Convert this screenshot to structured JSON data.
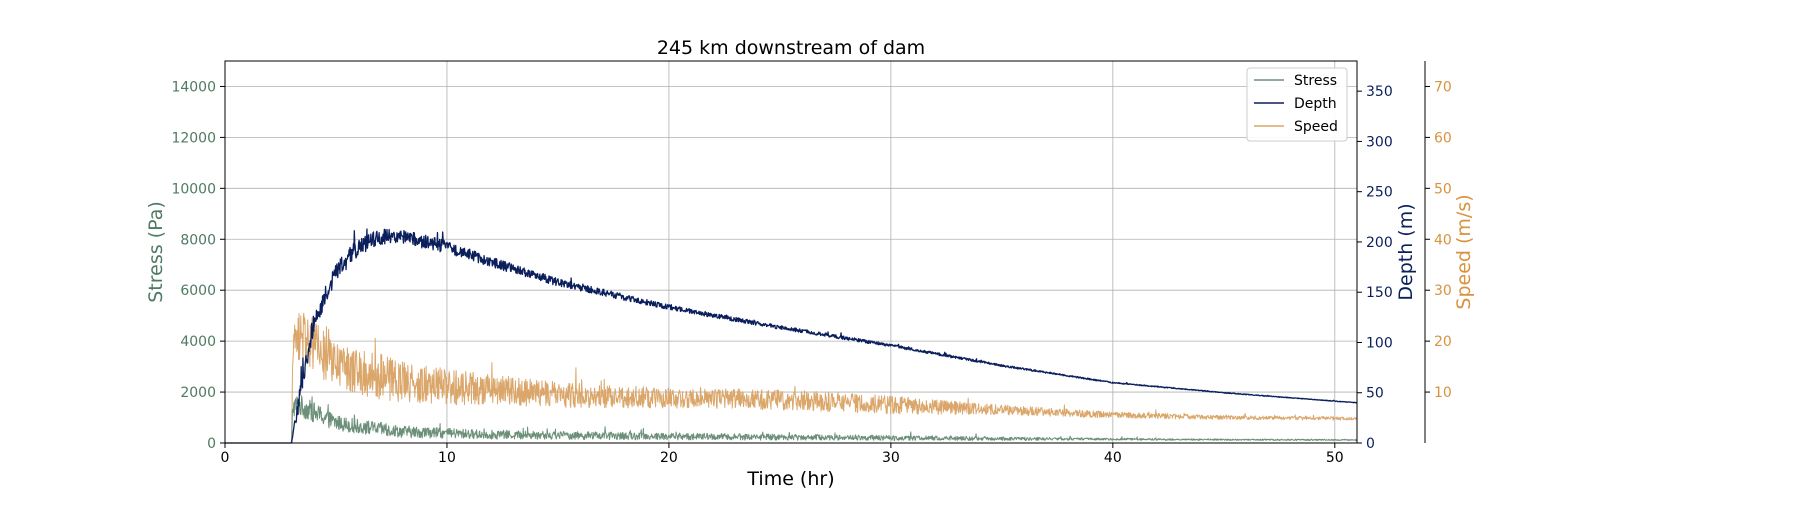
{
  "chart_data": {
    "type": "line",
    "title": "245 km downstream of dam",
    "xlabel": "Time (hr)",
    "xlim": [
      0,
      51
    ],
    "x_ticks": [
      0,
      10,
      20,
      30,
      40,
      50
    ],
    "grid": true,
    "legend_position": "top-right",
    "axes": {
      "stress": {
        "label": "Stress (Pa)",
        "side": "left",
        "color": "#4f7a63",
        "ylim": [
          0,
          15000
        ],
        "ticks": [
          0,
          2000,
          4000,
          6000,
          8000,
          10000,
          12000,
          14000
        ]
      },
      "depth": {
        "label": "Depth (m)",
        "side": "right",
        "color": "#0b1f5c",
        "ylim": [
          0,
          380
        ],
        "ticks": [
          0,
          50,
          100,
          150,
          200,
          250,
          300,
          350
        ]
      },
      "speed": {
        "label": "Speed (m/s)",
        "side": "right-outer",
        "color": "#d9923f",
        "ylim": [
          0,
          75
        ],
        "ticks": [
          10,
          20,
          30,
          40,
          50,
          60,
          70
        ]
      }
    },
    "series": [
      {
        "name": "Stress",
        "axis": "stress",
        "color": "#6b8f78",
        "x": [
          0,
          3.0,
          3.05,
          3.3,
          4,
          5,
          6,
          7,
          8,
          10,
          12,
          15,
          20,
          25,
          30,
          35,
          40,
          45,
          51
        ],
        "values": [
          0,
          0,
          1400,
          1500,
          1200,
          800,
          650,
          550,
          450,
          380,
          330,
          300,
          260,
          230,
          200,
          170,
          150,
          130,
          120
        ],
        "noise": [
          0,
          0,
          400,
          450,
          400,
          300,
          280,
          260,
          240,
          200,
          180,
          160,
          140,
          120,
          100,
          70,
          40,
          30,
          25
        ]
      },
      {
        "name": "Depth",
        "axis": "depth",
        "color": "#0b1f5c",
        "x": [
          0,
          3.0,
          3.3,
          4,
          5,
          6,
          7,
          8,
          9,
          10,
          12,
          15,
          20,
          25,
          30,
          35,
          40,
          45,
          51
        ],
        "values": [
          0,
          0,
          40,
          120,
          170,
          195,
          205,
          205,
          200,
          195,
          180,
          160,
          135,
          115,
          97,
          77,
          60,
          50,
          40
        ],
        "noise": [
          0,
          0,
          10,
          10,
          9,
          9,
          8,
          7,
          7,
          6,
          5,
          4,
          2.5,
          2,
          1.5,
          1,
          0.6,
          0.4,
          0.3
        ]
      },
      {
        "name": "Speed",
        "axis": "speed",
        "color": "#dba66a",
        "x": [
          0,
          3.0,
          3.05,
          3.5,
          4,
          5,
          6,
          7,
          8,
          10,
          12,
          15,
          20,
          25,
          30,
          35,
          40,
          45,
          51
        ],
        "values": [
          0,
          0,
          19,
          22,
          19,
          15,
          14,
          13,
          12,
          11,
          10.5,
          9.5,
          8.8,
          8.5,
          7.5,
          6.5,
          5.5,
          5,
          4.8
        ],
        "noise": [
          0,
          0,
          3,
          6,
          5,
          4.5,
          4.5,
          4.5,
          4,
          3.5,
          3,
          2.5,
          2,
          2,
          1.8,
          1,
          0.6,
          0.4,
          0.3
        ]
      }
    ]
  }
}
